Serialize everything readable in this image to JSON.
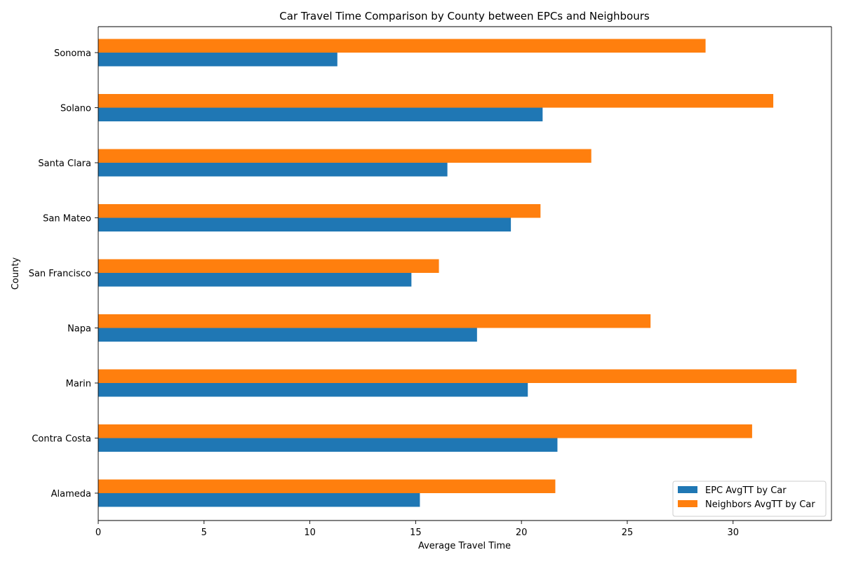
{
  "chart_data": {
    "type": "bar",
    "orientation": "horizontal",
    "title": "Car Travel Time Comparison by County between EPCs and Neighbours",
    "xlabel": "Average Travel Time",
    "ylabel": "County",
    "categories": [
      "Alameda",
      "Contra Costa",
      "Marin",
      "Napa",
      "San Francisco",
      "San Mateo",
      "Santa Clara",
      "Solano",
      "Sonoma"
    ],
    "series": [
      {
        "name": "EPC AvgTT by Car",
        "color": "#1f77b4",
        "values": [
          15.2,
          21.7,
          20.3,
          17.9,
          14.8,
          19.5,
          16.5,
          21.0,
          11.3
        ]
      },
      {
        "name": "Neighbors AvgTT by Car",
        "color": "#ff7f0e",
        "values": [
          21.6,
          30.9,
          33.0,
          26.1,
          16.1,
          20.9,
          23.3,
          31.9,
          28.7
        ]
      }
    ],
    "xlim": [
      0,
      34.65
    ],
    "xticks": [
      0,
      5,
      10,
      15,
      20,
      25,
      30
    ],
    "grid": false,
    "legend_position": "bottom-right"
  }
}
